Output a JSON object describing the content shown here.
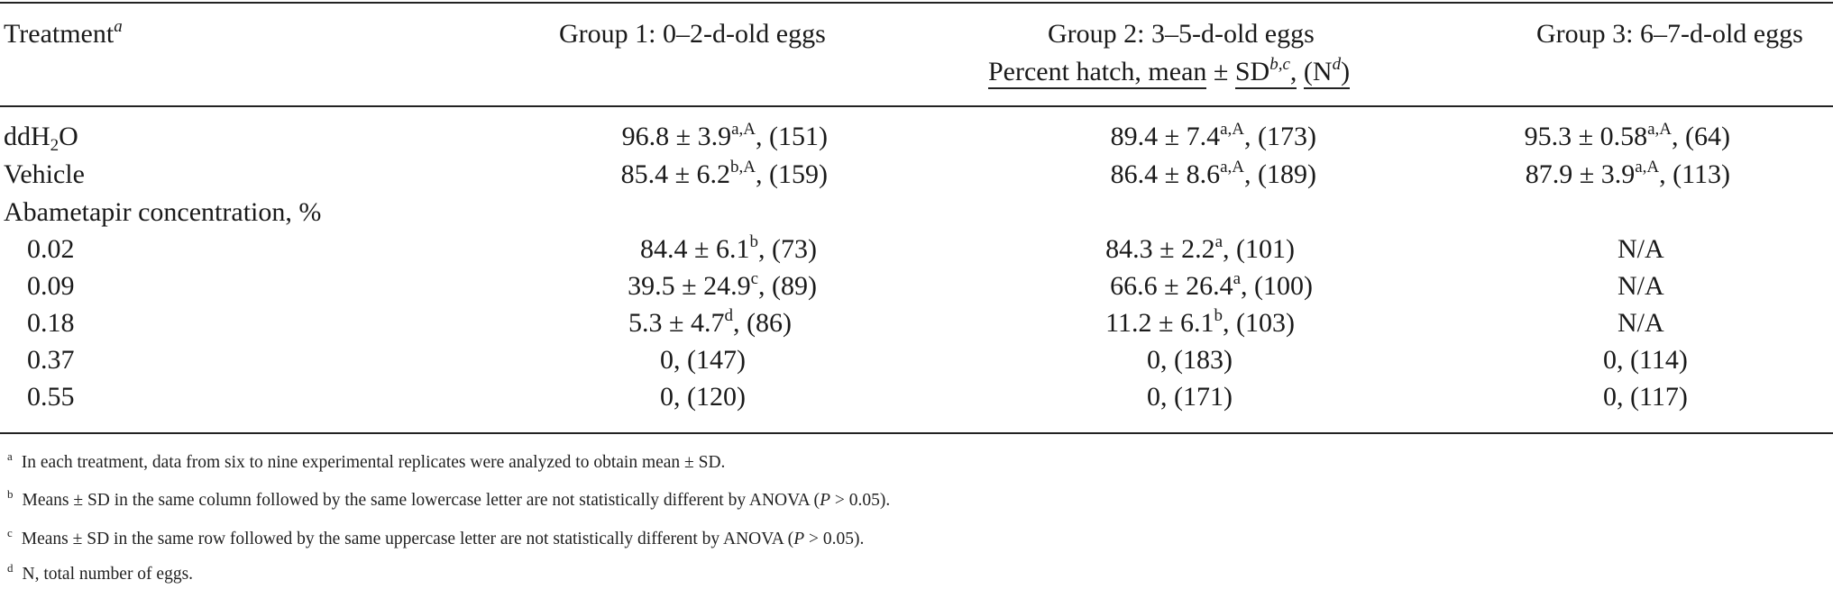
{
  "header": {
    "treatment": "Treatment",
    "treatment_sup": "a",
    "group1": "Group 1: 0–2-d-old eggs",
    "group2": "Group 2: 3–5-d-old eggs",
    "group3": "Group 3: 6–7-d-old eggs",
    "subheader_main": "Percent hatch, mean",
    "subheader_pm": "±",
    "subheader_sd": "SD",
    "subheader_sd_sup": "b,c",
    "subheader_comma": ",",
    "subheader_n_open": "(N",
    "subheader_n_sup": "d",
    "subheader_n_close": ")"
  },
  "rows": [
    {
      "label_main": "ddH",
      "label_sub": "2",
      "label_tail": "O",
      "g1": {
        "val": "96.8 ± 3.9",
        "sup": "a,A",
        "n": ", (151)"
      },
      "g2": {
        "val": "89.4 ± 7.4",
        "sup": "a,A",
        "n": ", (173)"
      },
      "g3": {
        "val": "95.3 ± 0.58",
        "sup": "a,A",
        "n": ", (64)"
      }
    },
    {
      "label": "Vehicle",
      "g1": {
        "val": "85.4 ± 6.2",
        "sup": "b,A",
        "n": ", (159)"
      },
      "g2": {
        "val": "86.4 ± 8.6",
        "sup": "a,A",
        "n": ", (189)"
      },
      "g3": {
        "val": "87.9 ± 3.9",
        "sup": "a,A",
        "n": ", (113)"
      }
    },
    {
      "label": "Abametapir concentration, %"
    },
    {
      "label": "0.02",
      "g1": {
        "val": "84.4 ± 6.1",
        "sup": "b",
        "n": ", (73)"
      },
      "g2": {
        "val": "84.3 ± 2.2",
        "sup": "a",
        "n": ", (101)"
      },
      "g3": {
        "text": "N/A"
      }
    },
    {
      "label": "0.09",
      "g1": {
        "val": "39.5 ± 24.9",
        "sup": "c",
        "n": ", (89)"
      },
      "g2": {
        "val": "66.6 ± 26.4",
        "sup": "a",
        "n": ", (100)"
      },
      "g3": {
        "text": "N/A"
      }
    },
    {
      "label": "0.18",
      "g1": {
        "val": "5.3 ± 4.7",
        "sup": "d",
        "n": ", (86)"
      },
      "g2": {
        "val": "11.2 ± 6.1",
        "sup": "b",
        "n": ", (103)"
      },
      "g3": {
        "text": "N/A"
      }
    },
    {
      "label": "0.37",
      "g1": {
        "text": "0, (147)"
      },
      "g2": {
        "text": "0, (183)"
      },
      "g3": {
        "text": "0, (114)"
      }
    },
    {
      "label": "0.55",
      "g1": {
        "text": "0, (120)"
      },
      "g2": {
        "text": "0, (171)"
      },
      "g3": {
        "text": "0, (117)"
      }
    }
  ],
  "footnotes": [
    {
      "mark": "a",
      "text": "In each treatment, data from six to nine experimental replicates were analyzed to obtain mean ± SD."
    },
    {
      "mark": "b",
      "pre": "Means ± SD in the same column followed by the same lowercase letter are not statistically different by ANOVA (",
      "p": "P",
      "post": " > 0.05)."
    },
    {
      "mark": "c",
      "pre": "Means ± SD in the same row followed by the same uppercase letter are not statistically different by ANOVA (",
      "p": "P",
      "post": " > 0.05)."
    },
    {
      "mark": "d",
      "text": "N, total number of eggs."
    }
  ]
}
